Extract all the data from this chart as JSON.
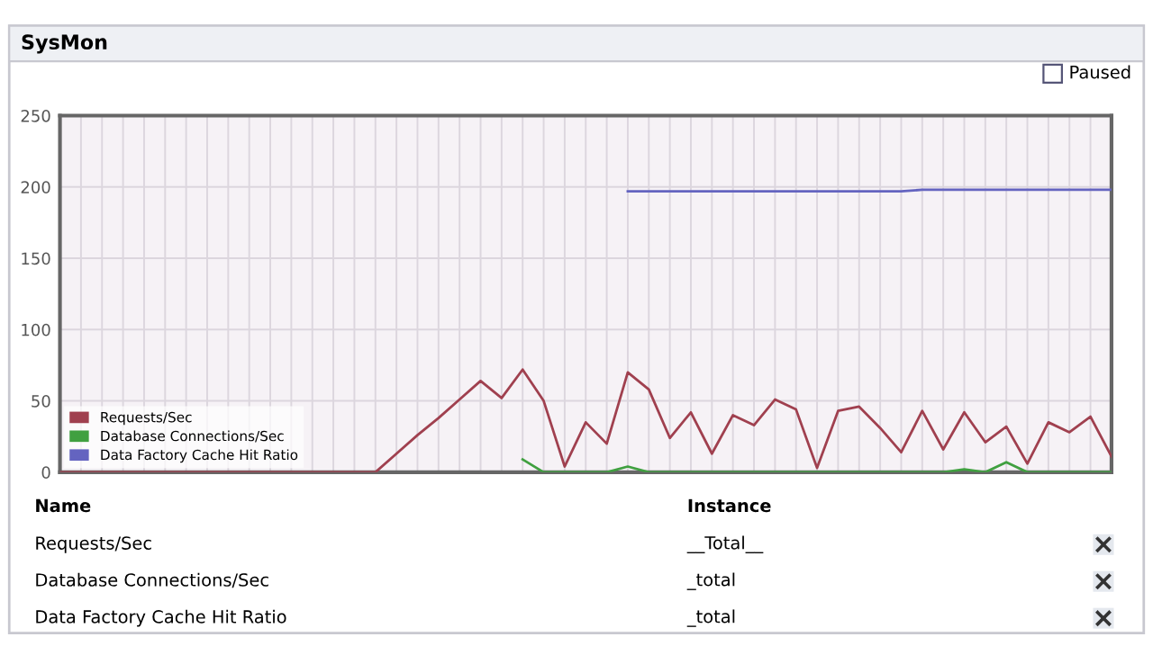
{
  "chart_data": {
    "type": "line",
    "title": "SysMon",
    "categories": [
      null,
      null,
      null,
      null,
      null,
      null,
      null,
      null,
      null,
      null,
      null,
      null,
      null,
      null,
      null,
      null,
      null,
      null,
      null,
      null,
      null,
      null,
      null,
      null,
      null,
      null,
      null,
      null,
      null,
      null,
      null,
      null,
      null,
      null,
      null,
      null,
      null,
      null,
      null,
      null,
      null,
      null,
      null,
      null,
      null,
      null,
      null,
      null,
      null,
      null,
      null
    ],
    "ylim": [
      0,
      250
    ],
    "yticks": [
      0,
      50,
      100,
      150,
      200,
      250
    ],
    "tick_labels": "y",
    "grid": true,
    "legend": "bottom left",
    "marker": "none",
    "line_style": "solid",
    "series": [
      {
        "name": "Requests/Sec",
        "color": "#a0404f",
        "values": [
          0,
          0,
          0,
          0,
          0,
          0,
          0,
          0,
          0,
          0,
          0,
          0,
          0,
          0,
          0,
          0,
          13,
          26,
          38,
          51,
          64,
          52,
          72,
          50,
          4,
          35,
          20,
          70,
          58,
          24,
          42,
          13,
          40,
          33,
          51,
          44,
          3,
          43,
          46,
          31,
          14,
          43,
          16,
          42,
          21,
          32,
          6,
          35,
          28,
          39,
          11
        ]
      },
      {
        "name": "Database Connections/Sec",
        "color": "#40a040",
        "values": [
          null,
          null,
          null,
          null,
          null,
          null,
          null,
          null,
          null,
          null,
          null,
          null,
          null,
          null,
          null,
          null,
          null,
          null,
          null,
          null,
          null,
          null,
          9,
          0,
          0,
          0,
          0,
          4,
          0,
          0,
          0,
          0,
          0,
          0,
          0,
          0,
          0,
          0,
          0,
          0,
          0,
          0,
          0,
          2,
          0,
          7,
          0,
          0,
          0,
          0,
          0
        ]
      },
      {
        "name": "Data Factory Cache Hit Ratio",
        "color": "#6464c0",
        "values": [
          null,
          null,
          null,
          null,
          null,
          null,
          null,
          null,
          null,
          null,
          null,
          null,
          null,
          null,
          null,
          null,
          null,
          null,
          null,
          null,
          null,
          null,
          null,
          null,
          null,
          null,
          null,
          197,
          197,
          197,
          197,
          197,
          197,
          197,
          197,
          197,
          197,
          197,
          197,
          197,
          197,
          198,
          198,
          198,
          198,
          198,
          198,
          198,
          198,
          198,
          198
        ]
      }
    ],
    "annotations": [
      "Paused",
      "Name",
      "Instance",
      "Requests/Sec",
      "__Total__",
      "Database Connections/Sec",
      "_total",
      "Data Factory Cache Hit Ratio",
      "_total"
    ]
  }
}
